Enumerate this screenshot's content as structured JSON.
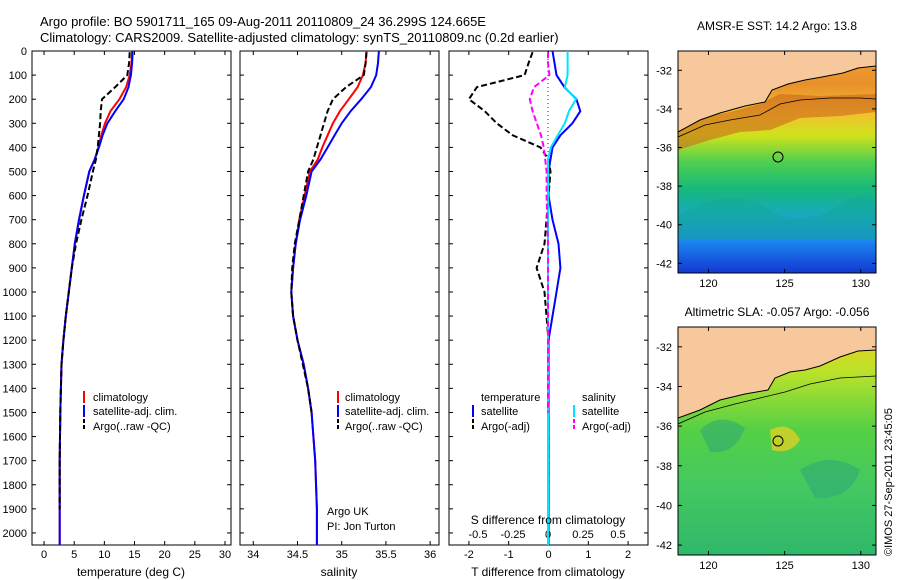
{
  "header": {
    "line1": "Argo profile: BO 5901711_165 09-Aug-2011 20110809_24 36.299S 124.665E",
    "line2": "Climatology: CARS2009. Satellite-adjusted climatology: synTS_20110809.nc (0.2d earlier)"
  },
  "depth_ticks": [
    "0",
    "100",
    "200",
    "300",
    "400",
    "500",
    "600",
    "700",
    "800",
    "900",
    "1000",
    "1100",
    "1200",
    "1300",
    "1400",
    "1500",
    "1600",
    "1700",
    "1800",
    "1900",
    "2000"
  ],
  "temp_panel": {
    "xlabel": "temperature (deg C)",
    "xticks": [
      "0",
      "5",
      "10",
      "15",
      "20",
      "25",
      "30"
    ],
    "legend": [
      "climatology",
      "satellite-adj. clim.",
      "Argo(..raw -QC)"
    ]
  },
  "sal_panel": {
    "xlabel": "salinity",
    "xticks": [
      "34",
      "34.5",
      "35",
      "35.5",
      "36"
    ],
    "legend": [
      "climatology",
      "satellite-adj. clim.",
      "Argo(..raw -QC)"
    ],
    "note1": "Argo UK",
    "note2": "PI: Jon Turton"
  },
  "diff_panel": {
    "xlabel": "T difference from climatology",
    "top_label": "S difference from climatology",
    "xticks_T": [
      "-2",
      "-1",
      "0",
      "1",
      "2"
    ],
    "xticks_S": [
      "-0.5",
      "-0.25",
      "0",
      "0.25",
      "0.5"
    ],
    "legend_head_T": "temperature",
    "legend_head_S": "salinity",
    "legend_T": [
      "satellite",
      "Argo(-adj)"
    ],
    "legend_S": [
      "satellite",
      "Argo(-adj)"
    ]
  },
  "map_sst": {
    "title": "AMSR-E SST: 14.2  Argo: 13.8",
    "yticks": [
      "-32",
      "-34",
      "-36",
      "-38",
      "-40",
      "-42"
    ],
    "xticks": [
      "120",
      "125",
      "130"
    ]
  },
  "map_sla": {
    "title": "Altimetric SLA: -0.057  Argo: -0.056",
    "yticks": [
      "-32",
      "-34",
      "-36",
      "-38",
      "-40",
      "-42"
    ],
    "xticks": [
      "120",
      "125",
      "130"
    ]
  },
  "timestamp": "©IMOS 27-Sep-2011 23:45:05",
  "colors": {
    "climatology": "#ff0000",
    "satellite": "#0000ff",
    "argo": "#000000",
    "sal_satellite": "#00e5ff",
    "sal_argo": "#ff00ff",
    "land": "#f7c89c"
  },
  "chart_data": [
    {
      "type": "line",
      "xlabel": "temperature (deg C)",
      "ylabel": "",
      "xlim": [
        -2,
        31
      ],
      "ylim": [
        2050,
        0
      ],
      "series": [
        {
          "name": "climatology",
          "x": [
            14.6,
            14.5,
            14.2,
            13.6,
            12.5,
            11.0,
            10.1,
            9.5,
            9.0,
            8.4,
            7.5,
            6.6,
            5.8,
            5.1,
            4.6,
            4.1,
            3.6,
            3.2,
            2.9,
            2.8,
            2.7,
            2.6,
            2.6,
            2.6
          ],
          "y": [
            0,
            50,
            100,
            150,
            200,
            250,
            300,
            350,
            400,
            450,
            500,
            600,
            700,
            800,
            900,
            1000,
            1100,
            1200,
            1300,
            1400,
            1500,
            1700,
            1900,
            2050
          ]
        },
        {
          "name": "satellite-adj. clim.",
          "x": [
            14.7,
            14.6,
            14.4,
            14.0,
            13.2,
            11.8,
            10.5,
            9.7,
            9.1,
            8.4,
            7.5,
            6.6,
            5.8,
            5.1,
            4.6,
            4.1,
            3.6,
            3.2,
            2.9,
            2.8,
            2.7,
            2.6,
            2.6,
            2.6
          ],
          "y": [
            0,
            50,
            100,
            150,
            200,
            250,
            300,
            350,
            400,
            450,
            500,
            600,
            700,
            800,
            900,
            1000,
            1100,
            1200,
            1300,
            1400,
            1500,
            1700,
            1900,
            2050
          ]
        },
        {
          "name": "Argo(..raw -QC)",
          "x": [
            14.2,
            14.1,
            13.8,
            11.8,
            9.6,
            9.4,
            9.3,
            9.1,
            8.9,
            8.6,
            8.1,
            7.2,
            6.2,
            5.3,
            4.6,
            4.1,
            3.6,
            3.2,
            2.9,
            2.8,
            2.7,
            2.6,
            2.6
          ],
          "y": [
            5,
            50,
            100,
            150,
            200,
            250,
            300,
            350,
            400,
            450,
            500,
            600,
            700,
            800,
            900,
            1000,
            1100,
            1200,
            1300,
            1400,
            1500,
            1700,
            1900
          ]
        }
      ]
    },
    {
      "type": "line",
      "xlabel": "salinity",
      "ylabel": "",
      "xlim": [
        33.85,
        36.1
      ],
      "ylim": [
        2050,
        0
      ],
      "series": [
        {
          "name": "climatology",
          "x": [
            35.28,
            35.27,
            35.24,
            35.18,
            35.08,
            34.98,
            34.9,
            34.84,
            34.78,
            34.73,
            34.64,
            34.58,
            34.52,
            34.48,
            34.45,
            34.43,
            34.45,
            34.5,
            34.57,
            34.62,
            34.66,
            34.7,
            34.72,
            34.72
          ],
          "y": [
            0,
            50,
            100,
            150,
            200,
            250,
            300,
            350,
            400,
            450,
            500,
            600,
            700,
            800,
            900,
            1000,
            1100,
            1200,
            1300,
            1400,
            1500,
            1700,
            1900,
            2050
          ]
        },
        {
          "name": "satellite-adj. clim.",
          "x": [
            35.42,
            35.41,
            35.39,
            35.33,
            35.22,
            35.1,
            35.0,
            34.92,
            34.84,
            34.76,
            34.66,
            34.6,
            34.53,
            34.48,
            34.45,
            34.43,
            34.45,
            34.5,
            34.57,
            34.62,
            34.66,
            34.7,
            34.72,
            34.72
          ],
          "y": [
            0,
            50,
            100,
            150,
            200,
            250,
            300,
            350,
            400,
            450,
            500,
            600,
            700,
            800,
            900,
            1000,
            1100,
            1200,
            1300,
            1400,
            1500,
            1700,
            1900,
            2050
          ]
        },
        {
          "name": "Argo(..raw -QC)",
          "x": [
            35.28,
            35.27,
            35.25,
            35.05,
            34.9,
            34.84,
            34.8,
            34.76,
            34.72,
            34.68,
            34.62,
            34.57,
            34.52,
            34.47,
            34.44,
            34.43,
            34.45,
            34.5,
            34.56,
            34.62,
            34.66
          ],
          "y": [
            5,
            50,
            100,
            150,
            200,
            250,
            300,
            350,
            400,
            450,
            500,
            600,
            700,
            800,
            900,
            1000,
            1100,
            1200,
            1300,
            1400,
            1500
          ]
        }
      ]
    },
    {
      "type": "line",
      "xlabel": "T difference from climatology",
      "ylabel": "",
      "xlim": [
        -2.5,
        2.5
      ],
      "ylim": [
        2050,
        0
      ],
      "series": [
        {
          "name": "temperature satellite",
          "x": [
            0.1,
            0.15,
            0.2,
            0.4,
            0.7,
            0.8,
            0.6,
            0.3,
            0.1,
            0.05,
            0,
            0,
            0.1,
            0.25,
            0.3,
            0.2,
            0.1,
            0,
            0,
            0
          ],
          "y": [
            0,
            50,
            100,
            150,
            200,
            250,
            300,
            350,
            400,
            450,
            500,
            600,
            700,
            800,
            900,
            1000,
            1100,
            1200,
            1600,
            2050
          ]
        },
        {
          "name": "temperature Argo(-adj)",
          "x": [
            -0.4,
            -0.5,
            -0.6,
            -1.8,
            -2.0,
            -1.6,
            -1.3,
            -0.9,
            -0.2,
            0,
            0.05,
            0,
            -0.05,
            -0.1,
            -0.3,
            -0.1,
            -0.05,
            0,
            0
          ],
          "y": [
            5,
            50,
            100,
            150,
            200,
            250,
            300,
            350,
            400,
            450,
            500,
            600,
            700,
            800,
            900,
            1000,
            1100,
            1200,
            1900
          ]
        },
        {
          "name": "salinity satellite",
          "x": [
            0.14,
            0.14,
            0.14,
            0.12,
            0.2,
            0.15,
            0.12,
            0.07,
            0.02,
            0,
            0,
            0,
            0,
            0
          ],
          "y": [
            0,
            50,
            100,
            150,
            200,
            250,
            300,
            350,
            400,
            450,
            500,
            1000,
            1500,
            2050
          ]
        },
        {
          "name": "salinity Argo(-adj)",
          "x": [
            0,
            0,
            0.01,
            -0.1,
            -0.13,
            -0.11,
            -0.08,
            -0.05,
            -0.03,
            -0.02,
            -0.01,
            -0.01,
            -0.01,
            0,
            0,
            0
          ],
          "y": [
            5,
            50,
            100,
            150,
            200,
            250,
            300,
            350,
            400,
            450,
            500,
            550,
            600,
            800,
            1000,
            1500
          ]
        }
      ]
    },
    {
      "type": "heatmap",
      "title": "AMSR-E SST: 14.2  Argo: 13.8",
      "xlim": [
        118,
        131
      ],
      "ylim": [
        -42.5,
        -31
      ]
    },
    {
      "type": "heatmap",
      "title": "Altimetric SLA: -0.057  Argo: -0.056",
      "xlim": [
        118,
        131
      ],
      "ylim": [
        -42.5,
        -31
      ]
    }
  ]
}
